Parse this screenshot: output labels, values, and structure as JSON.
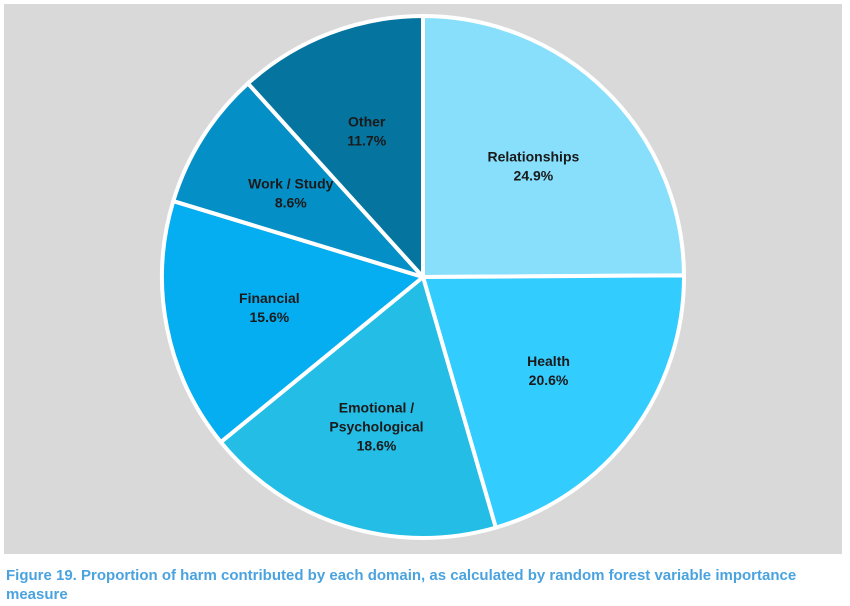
{
  "figure_caption": "Figure 19. Proportion of harm contributed by each domain, as calculated by random forest variable importance measure",
  "chart_data": {
    "type": "pie",
    "title": "",
    "grid": false,
    "legend": "none",
    "background_color": "#d9d9d9",
    "slices": [
      {
        "label": "Relationships",
        "label_lines": [
          "Relationships"
        ],
        "value_label": "24.9%",
        "value": 24.9,
        "color": "#87dffc"
      },
      {
        "label": "Health",
        "label_lines": [
          "Health"
        ],
        "value_label": "20.6%",
        "value": 20.6,
        "color": "#33ccff"
      },
      {
        "label": "Emotional / Psychological",
        "label_lines": [
          "Emotional /",
          "Psychological"
        ],
        "value_label": "18.6%",
        "value": 18.6,
        "color": "#23bde6"
      },
      {
        "label": "Financial",
        "label_lines": [
          "Financial"
        ],
        "value_label": "15.6%",
        "value": 15.6,
        "color": "#05aef0"
      },
      {
        "label": "Work / Study",
        "label_lines": [
          "Work / Study"
        ],
        "value_label": "8.6%",
        "value": 8.6,
        "color": "#048fc7"
      },
      {
        "label": "Other",
        "label_lines": [
          "Other"
        ],
        "value_label": "11.7%",
        "value": 11.7,
        "color": "#05759f"
      }
    ]
  }
}
